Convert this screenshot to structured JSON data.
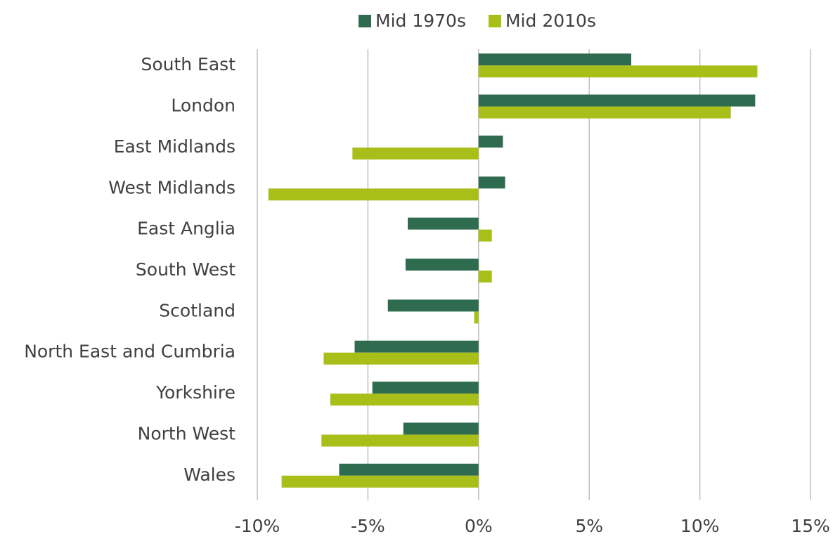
{
  "chart_data": {
    "type": "bar",
    "orientation": "horizontal",
    "categories": [
      "South East",
      "London",
      "East Midlands",
      "West Midlands",
      "East Anglia",
      "South West",
      "Scotland",
      "North East and Cumbria",
      "Yorkshire",
      "North West",
      "Wales"
    ],
    "series": [
      {
        "name": "Mid 1970s",
        "color": "#2e6b4f",
        "values": [
          6.9,
          12.5,
          1.1,
          1.2,
          -3.2,
          -3.3,
          -4.1,
          -5.6,
          -4.8,
          -3.4,
          -6.3
        ]
      },
      {
        "name": "Mid 2010s",
        "color": "#a8bf1a",
        "values": [
          12.6,
          11.4,
          -5.7,
          -9.5,
          0.6,
          0.6,
          -0.2,
          -7.0,
          -6.7,
          -7.1,
          -8.9
        ]
      }
    ],
    "xlim": [
      -10,
      15
    ],
    "xticks": [
      {
        "value": -10,
        "label": "-10%"
      },
      {
        "value": -5,
        "label": "-5%"
      },
      {
        "value": 0,
        "label": "0%"
      },
      {
        "value": 5,
        "label": "5%"
      },
      {
        "value": 10,
        "label": "10%"
      },
      {
        "value": 15,
        "label": "15%"
      }
    ],
    "grid": true,
    "legend": "top"
  }
}
